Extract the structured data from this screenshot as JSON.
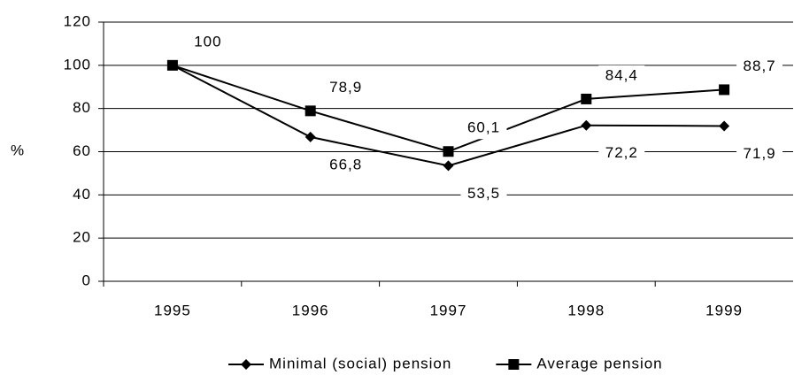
{
  "chart_data": {
    "type": "line",
    "y_label": "%",
    "categories": [
      "1995",
      "1996",
      "1997",
      "1998",
      "1999"
    ],
    "series": [
      {
        "name": "Minimal (social) pension",
        "color": "#000000",
        "marker": "diamond",
        "values": [
          100,
          66.8,
          53.5,
          72.2,
          71.9
        ],
        "value_labels": [
          null,
          "66,8",
          "53,5",
          "72,2",
          "71,9"
        ]
      },
      {
        "name": "Average pension",
        "color": "#000000",
        "marker": "square",
        "values": [
          100,
          78.9,
          60.1,
          84.4,
          88.7
        ],
        "value_labels": [
          "100",
          "78,9",
          "60,1",
          "84,4",
          "88,7"
        ]
      }
    ],
    "ylim": [
      0,
      120
    ],
    "yticks": [
      0,
      20,
      40,
      60,
      80,
      100,
      120
    ],
    "grid": true
  }
}
